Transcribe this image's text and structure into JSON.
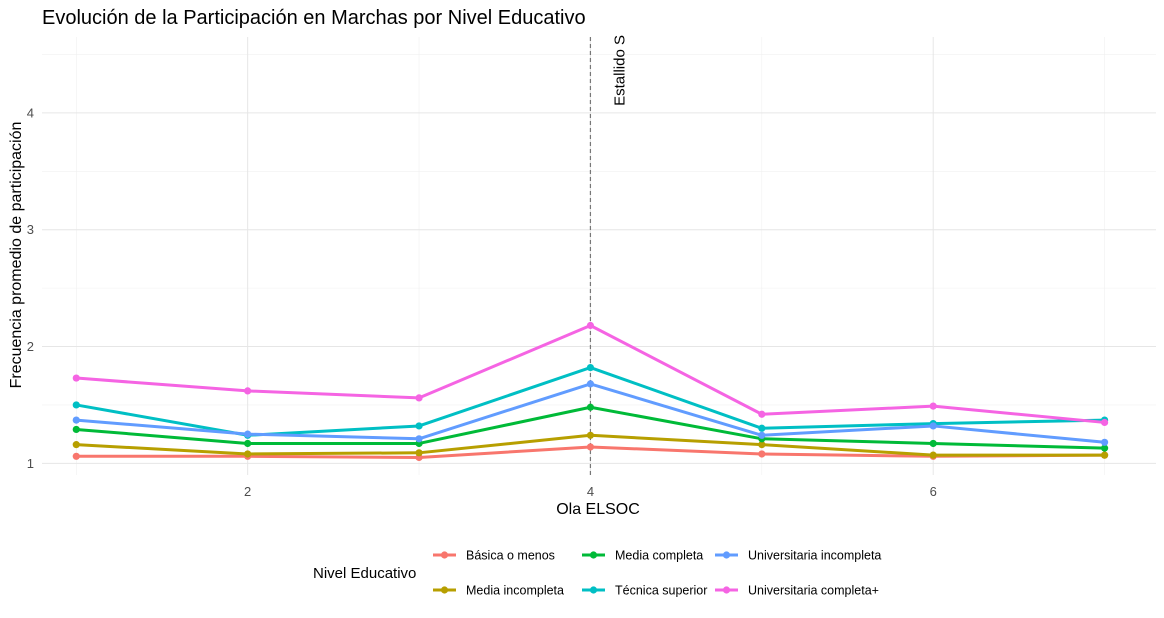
{
  "chart_data": {
    "type": "line",
    "title": "Evolución de la Participación en Marchas por Nivel Educativo",
    "xlabel": "Ola ELSOC",
    "ylabel": "Frecuencia promedio de participación",
    "xlim": [
      0.8,
      7.3
    ],
    "ylim": [
      0.9,
      4.65
    ],
    "x_ticks": [
      2,
      4,
      6
    ],
    "y_ticks": [
      1,
      2,
      3,
      4
    ],
    "grid": true,
    "x": [
      1,
      2,
      3,
      4,
      5,
      6,
      7
    ],
    "series": [
      {
        "name": "Básica o menos",
        "color": "#F8766D",
        "values": [
          1.06,
          1.06,
          1.05,
          1.14,
          1.08,
          1.06,
          1.07
        ]
      },
      {
        "name": "Media incompleta",
        "color": "#B79F00",
        "values": [
          1.16,
          1.08,
          1.09,
          1.24,
          1.16,
          1.07,
          1.07
        ]
      },
      {
        "name": "Media completa",
        "color": "#00BA38",
        "values": [
          1.29,
          1.17,
          1.17,
          1.48,
          1.21,
          1.17,
          1.13
        ]
      },
      {
        "name": "Técnica superior",
        "color": "#00BFC4",
        "values": [
          1.5,
          1.24,
          1.32,
          1.82,
          1.3,
          1.34,
          1.37
        ]
      },
      {
        "name": "Universitaria incompleta",
        "color": "#619CFF",
        "values": [
          1.37,
          1.25,
          1.21,
          1.68,
          1.24,
          1.32,
          1.18
        ]
      },
      {
        "name": "Universitaria completa+",
        "color": "#F564E3",
        "values": [
          1.73,
          1.62,
          1.56,
          2.18,
          1.42,
          1.49,
          1.35
        ]
      }
    ],
    "annotation": {
      "x": 4,
      "text": "Estallido S"
    },
    "legend": {
      "title": "Nivel Educativo",
      "placement": "bottom",
      "rows": [
        [
          "Básica o menos",
          "Media completa",
          "Universitaria incompleta"
        ],
        [
          "Media incompleta",
          "Técnica superior",
          "Universitaria completa+"
        ]
      ]
    }
  }
}
